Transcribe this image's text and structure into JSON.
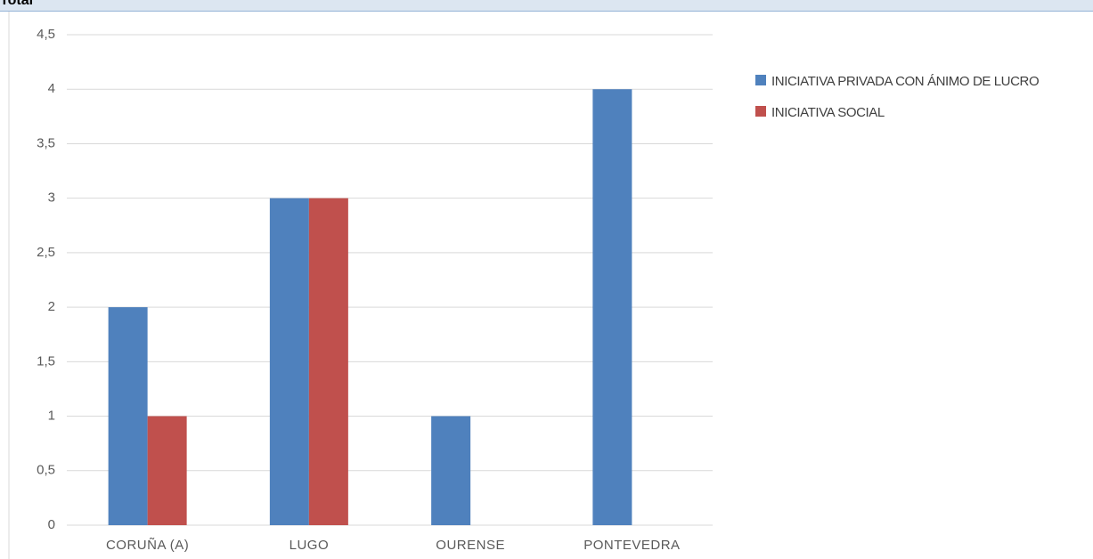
{
  "header_label": "Total",
  "chart_data": {
    "type": "bar",
    "categories": [
      "CORUÑA (A)",
      "LUGO",
      "OURENSE",
      "PONTEVEDRA"
    ],
    "series": [
      {
        "name": "INICIATIVA PRIVADA CON ÁNIMO DE LUCRO",
        "color": "#4f81bd",
        "values": [
          2,
          3,
          1,
          4
        ]
      },
      {
        "name": "INICIATIVA SOCIAL",
        "color": "#c0504d",
        "values": [
          1,
          3,
          null,
          null
        ]
      }
    ],
    "ylim": [
      0,
      4.5
    ],
    "yticks": [
      0,
      {
        "value": 0.5,
        "label": "0,5"
      },
      1,
      {
        "value": 1.5,
        "label": "1,5"
      },
      2,
      {
        "value": 2.5,
        "label": "2,5"
      },
      3,
      {
        "value": 3.5,
        "label": "3,5"
      },
      4,
      {
        "value": 4.5,
        "label": "4,5"
      }
    ],
    "grid": true,
    "legend": "right"
  }
}
